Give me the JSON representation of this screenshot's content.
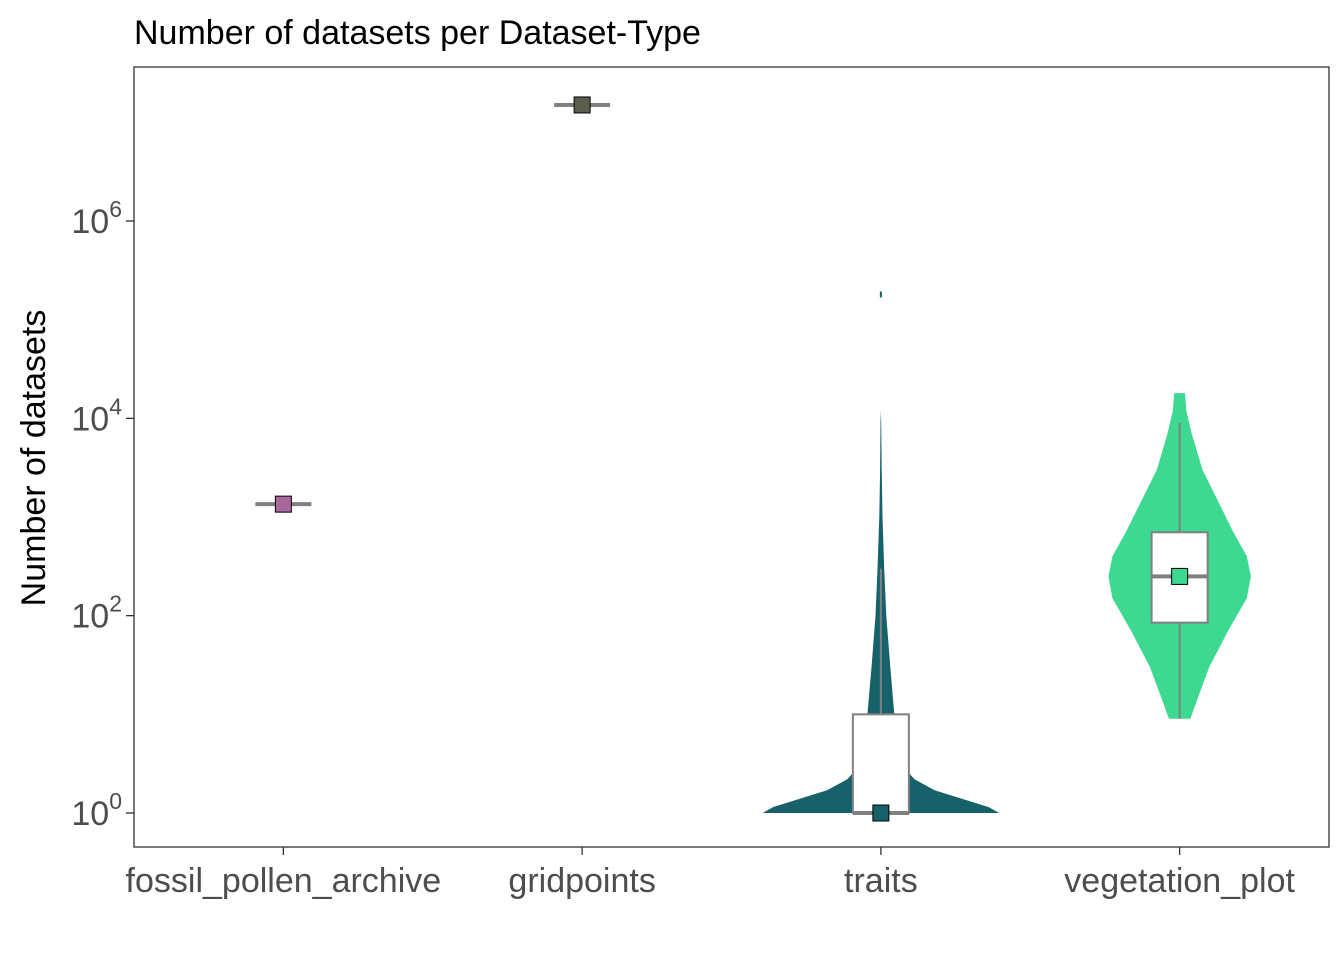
{
  "chart_data": {
    "type": "violin",
    "title": "Number of datasets per Dataset-Type",
    "xlabel": "",
    "ylabel": "Number of datasets",
    "y_scale": "log10",
    "ylim": [
      0.7,
      3000000
    ],
    "y_ticks": [
      {
        "value": 1,
        "base": "10",
        "exp": "0"
      },
      {
        "value": 100,
        "base": "10",
        "exp": "2"
      },
      {
        "value": 10000,
        "base": "10",
        "exp": "4"
      },
      {
        "value": 1000000,
        "base": "10",
        "exp": "6"
      }
    ],
    "grid": false,
    "legend": "none",
    "categories": [
      "fossil_pollen_archive",
      "gridpoints",
      "traits",
      "vegetation_plot"
    ],
    "groups": [
      {
        "category": "fossil_pollen_archive",
        "color": "#a8689e",
        "violin": null,
        "box": {
          "q1": 1350,
          "median": 1350,
          "q3": 1350,
          "whisker_low": 1350,
          "whisker_high": 1350
        },
        "mean": 1350
      },
      {
        "category": "gridpoints",
        "color": "#5b5e4d",
        "violin": null,
        "box": {
          "q1": 15000000,
          "median": 15000000,
          "q3": 15000000,
          "whisker_low": 15000000,
          "whisker_high": 15000000
        },
        "mean": 15000000
      },
      {
        "category": "traits",
        "color": "#17626a",
        "violin": {
          "min": 1,
          "max": 200000,
          "profile": [
            [
              1,
              0.88
            ],
            [
              1.15,
              0.8
            ],
            [
              1.4,
              0.6
            ],
            [
              1.7,
              0.4
            ],
            [
              2.2,
              0.25
            ],
            [
              3,
              0.16
            ],
            [
              5,
              0.12
            ],
            [
              10,
              0.1
            ],
            [
              30,
              0.07
            ],
            [
              100,
              0.04
            ],
            [
              300,
              0.025
            ],
            [
              1000,
              0.012
            ],
            [
              3000,
              0.006
            ],
            [
              9000,
              0.0025
            ],
            [
              12000,
              0.0
            ]
          ],
          "outlier_at": 180000
        },
        "box": {
          "q1": 1,
          "median": 1,
          "q3": 10,
          "whisker_low": 1,
          "whisker_high": 300
        },
        "mean": 1
      },
      {
        "category": "vegetation_plot",
        "color": "#3dd990",
        "violin": {
          "min": 9,
          "max": 18000,
          "profile": [
            [
              9,
              0.08
            ],
            [
              14,
              0.13
            ],
            [
              30,
              0.22
            ],
            [
              70,
              0.36
            ],
            [
              150,
              0.5
            ],
            [
              250,
              0.53
            ],
            [
              400,
              0.5
            ],
            [
              700,
              0.4
            ],
            [
              1500,
              0.28
            ],
            [
              3000,
              0.17
            ],
            [
              7000,
              0.09
            ],
            [
              12000,
              0.05
            ],
            [
              18000,
              0.04
            ]
          ]
        },
        "box": {
          "q1": 85,
          "median": 250,
          "q3": 700,
          "whisker_low": 9,
          "whisker_high": 9000
        },
        "mean": 250
      }
    ]
  }
}
